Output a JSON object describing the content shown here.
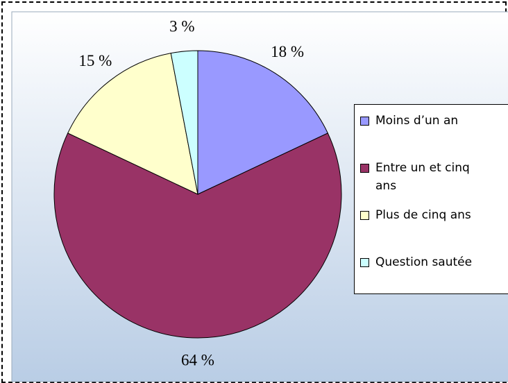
{
  "chart_data": {
    "type": "pie",
    "categories": [
      "Moins d’un an",
      "Entre un et cinq ans",
      "Plus de cinq ans",
      "Question sautée"
    ],
    "values": [
      18,
      64,
      15,
      3
    ],
    "value_labels": [
      "18 %",
      "64 %",
      "15 %",
      "3 %"
    ],
    "colors": [
      "#9999ff",
      "#993366",
      "#ffffcc",
      "#ccffff"
    ],
    "legend": "right"
  }
}
